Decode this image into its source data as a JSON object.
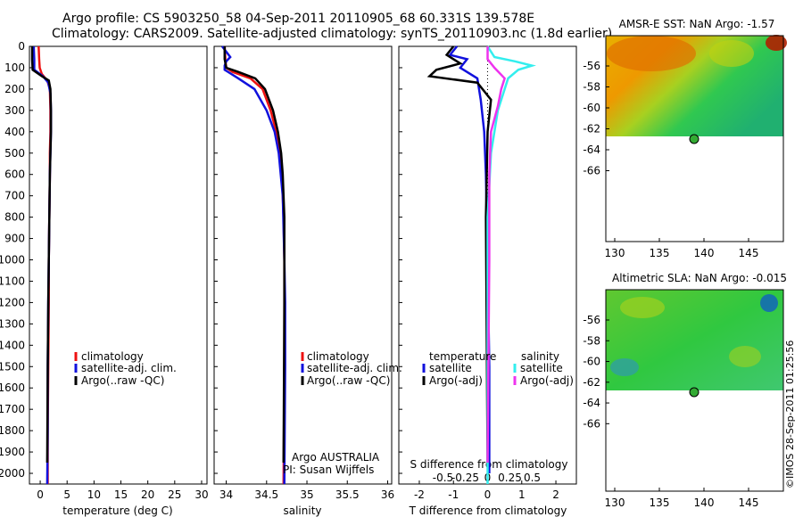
{
  "header": {
    "line1": "Argo profile: CS 5903250_58 04-Sep-2011 20110905_68 60.331S 139.578E",
    "line2": "Climatology: CARS2009. Satellite-adjusted climatology: synTS_20110903.nc (1.8d earlier)"
  },
  "depth_ticks": [
    "0",
    "100",
    "200",
    "300",
    "400",
    "500",
    "600",
    "700",
    "800",
    "900",
    "1000",
    "1100",
    "1200",
    "1300",
    "1400",
    "1500",
    "1600",
    "1700",
    "1800",
    "1900",
    "2000"
  ],
  "colors": {
    "climatology": "#ee1111",
    "satellite": "#1111dd",
    "argo": "#000000",
    "sat_s": "#33eeee",
    "argo_s": "#ee33ee",
    "marker": "#33aa33"
  },
  "panels": {
    "temperature": {
      "xlabel": "temperature (deg C)",
      "xticks": [
        "0",
        "5",
        "10",
        "15",
        "20",
        "25",
        "30"
      ],
      "legend": [
        "climatology",
        "satellite-adj. clim.",
        "Argo(..raw -QC)"
      ]
    },
    "salinity": {
      "xlabel": "salinity",
      "xticks": [
        "34",
        "34.5",
        "35",
        "35.5",
        "36"
      ],
      "legend": [
        "climatology",
        "satellite-adj. clim.",
        "Argo(..raw -QC)"
      ],
      "credit1": "Argo AUSTRALIA",
      "credit2": "PI: Susan Wijffels"
    },
    "difference": {
      "xlabel": "T difference from climatology",
      "xticks": [
        "-2",
        "-1",
        "0",
        "1",
        "2"
      ],
      "s_title": "S difference from climatology",
      "s_ticks": [
        "-0.5",
        "-0.25",
        "0",
        "0.25",
        "0.5"
      ],
      "leg_t_title": "temperature",
      "leg_s_title": "salinity",
      "legend": [
        "satellite",
        "Argo(-adj)",
        "satellite",
        "Argo(-adj)"
      ]
    }
  },
  "maps": {
    "sst": {
      "title": "AMSR-E SST: NaN Argo: -1.57"
    },
    "sla": {
      "title": "Altimetric SLA: NaN Argo: -0.015"
    },
    "xticks": [
      "130",
      "135",
      "140",
      "145"
    ],
    "yticks": [
      "-56",
      "-58",
      "-60",
      "-62",
      "-64",
      "-66"
    ]
  },
  "footer": "©IMOS 28-Sep-2011 01:25:56",
  "chart_data": [
    {
      "type": "line",
      "title": "",
      "xlabel": "temperature (deg C)",
      "ylabel": "",
      "xlim": [
        -2,
        31
      ],
      "ylim": [
        2050,
        0
      ],
      "series": [
        {
          "name": "climatology",
          "x": [
            -0.3,
            -0.2,
            -0.1,
            0.3,
            1.3,
            1.8,
            1.9,
            1.9,
            1.8,
            1.8,
            1.7,
            1.6,
            1.6,
            1.5,
            1.4,
            1.4
          ],
          "y": [
            0,
            60,
            100,
            130,
            160,
            200,
            300,
            400,
            500,
            600,
            800,
            1000,
            1200,
            1500,
            1800,
            2050
          ]
        },
        {
          "name": "satellite-adj. clim.",
          "x": [
            -1.2,
            -1.1,
            -1.1,
            0.5,
            1.5,
            1.9,
            2.0,
            2.0,
            1.9,
            1.8,
            1.7,
            1.6,
            1.5,
            1.4,
            1.4,
            1.3
          ],
          "y": [
            0,
            60,
            110,
            140,
            170,
            220,
            300,
            400,
            500,
            600,
            800,
            1000,
            1200,
            1500,
            1800,
            2050
          ]
        },
        {
          "name": "Argo(..raw -QC)",
          "x": [
            -1.5,
            -1.5,
            -1.4,
            0.3,
            1.6,
            1.9,
            2.0,
            2.0,
            1.9,
            1.8,
            1.7,
            1.6,
            1.5,
            1.4,
            1.3
          ],
          "y": [
            0,
            60,
            110,
            140,
            160,
            200,
            300,
            400,
            500,
            600,
            800,
            1000,
            1200,
            1500,
            1950
          ]
        }
      ]
    },
    {
      "type": "line",
      "title": "",
      "xlabel": "salinity",
      "ylabel": "",
      "xlim": [
        33.85,
        36.05
      ],
      "ylim": [
        2050,
        0
      ],
      "series": [
        {
          "name": "climatology",
          "x": [
            33.98,
            33.99,
            34.0,
            34.08,
            34.3,
            34.45,
            34.55,
            34.62,
            34.66,
            34.69,
            34.71,
            34.72,
            34.72,
            34.72,
            34.71
          ],
          "y": [
            0,
            70,
            100,
            120,
            150,
            200,
            300,
            400,
            500,
            600,
            800,
            1000,
            1200,
            1500,
            2050
          ]
        },
        {
          "name": "satellite-adj. clim.",
          "x": [
            33.95,
            34.05,
            34.0,
            33.98,
            33.98,
            34.15,
            34.35,
            34.5,
            34.6,
            34.65,
            34.7,
            34.72,
            34.73,
            34.73,
            34.72
          ],
          "y": [
            0,
            50,
            70,
            90,
            110,
            150,
            200,
            300,
            400,
            500,
            700,
            1000,
            1200,
            1500,
            2050
          ]
        },
        {
          "name": "Argo(..raw -QC)",
          "x": [
            33.98,
            33.98,
            34.0,
            34.15,
            34.36,
            34.48,
            34.58,
            34.64,
            34.68,
            34.7,
            34.72,
            34.72,
            34.72,
            34.71
          ],
          "y": [
            0,
            60,
            100,
            120,
            150,
            200,
            300,
            400,
            500,
            600,
            800,
            1000,
            1200,
            1950
          ]
        }
      ]
    },
    {
      "type": "line",
      "title": "",
      "xlabel": "T difference from climatology",
      "ylabel": "",
      "xlim": [
        -2.6,
        2.6
      ],
      "ylim": [
        2050,
        0
      ],
      "series": [
        {
          "name": "satellite",
          "x": [
            -0.9,
            -1.1,
            -0.6,
            -0.8,
            -0.3,
            -0.2,
            -0.1,
            -0.05,
            0.0,
            0.05,
            0.05
          ],
          "y": [
            0,
            40,
            60,
            100,
            150,
            250,
            400,
            600,
            1000,
            1500,
            2000
          ]
        },
        {
          "name": "Argo(-adj)",
          "x": [
            -1.0,
            -1.2,
            -0.8,
            -1.5,
            -1.7,
            -0.3,
            0.1,
            0.0,
            -0.05,
            0.0
          ],
          "y": [
            0,
            40,
            80,
            110,
            140,
            170,
            250,
            400,
            800,
            1950
          ]
        },
        {
          "name": "satellite",
          "x": [
            0.0,
            0.2,
            0.8,
            1.3,
            0.9,
            0.6,
            0.3,
            0.1,
            0.0,
            0.0
          ],
          "y": [
            0,
            50,
            70,
            90,
            110,
            150,
            300,
            500,
            800,
            2050
          ]
        },
        {
          "name": "Argo(-adj)",
          "x": [
            0.0,
            0.0,
            0.2,
            0.5,
            0.4,
            0.3,
            0.1,
            0.05,
            0.05,
            0.0
          ],
          "y": [
            0,
            60,
            100,
            150,
            200,
            280,
            400,
            600,
            1000,
            1950
          ]
        }
      ]
    }
  ]
}
